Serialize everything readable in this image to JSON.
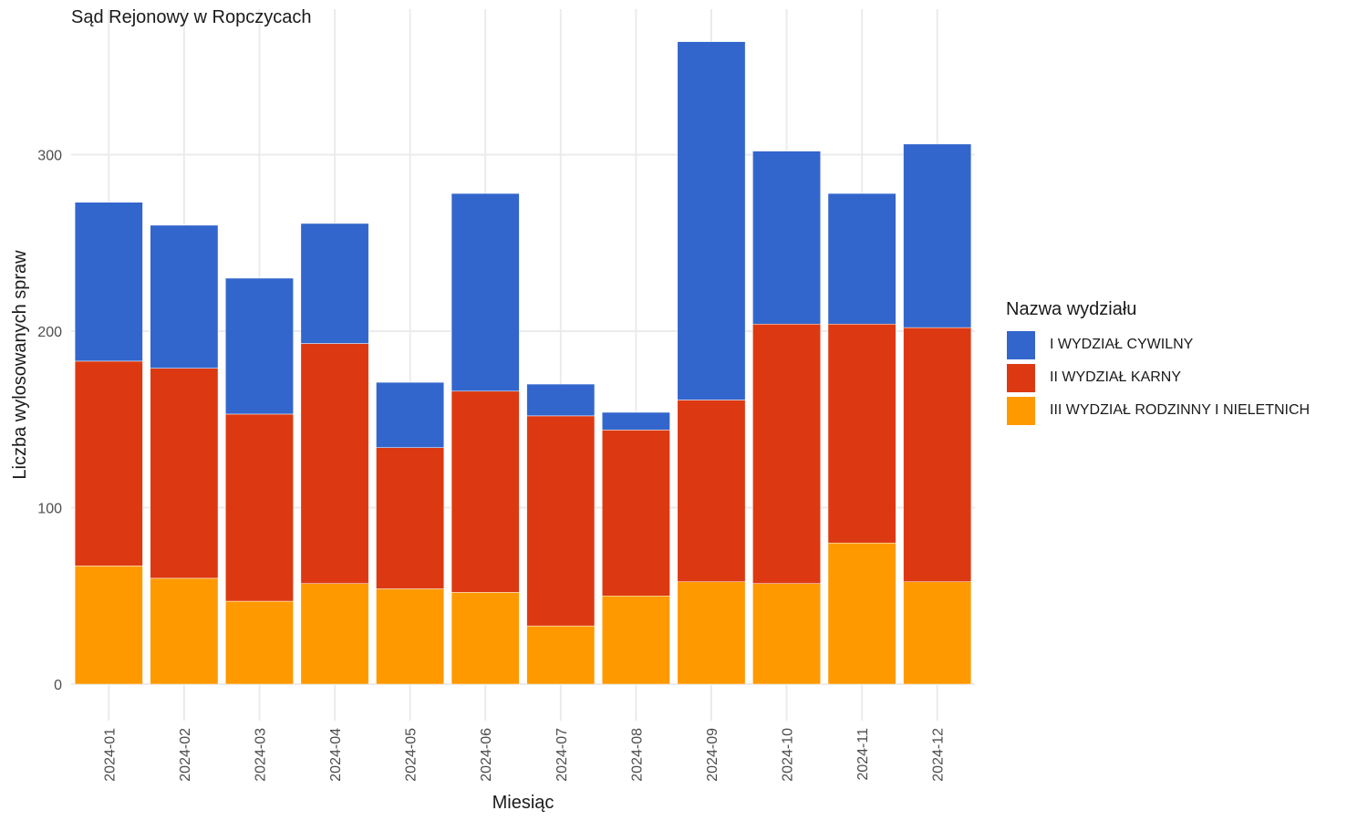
{
  "chart_data": {
    "type": "bar",
    "stacked": true,
    "title": "Sąd Rejonowy w Ropczycach",
    "xlabel": "Miesiąc",
    "ylabel": "Liczba wylosowanych spraw",
    "ylim": [
      0,
      380
    ],
    "yticks": [
      0,
      100,
      200,
      300
    ],
    "grid": true,
    "legend_position": "right",
    "legend_title": "Nazwa wydziału",
    "categories": [
      "2024-01",
      "2024-02",
      "2024-03",
      "2024-04",
      "2024-05",
      "2024-06",
      "2024-07",
      "2024-08",
      "2024-09",
      "2024-10",
      "2024-11",
      "2024-12"
    ],
    "series": [
      {
        "name": "III WYDZIAŁ RODZINNY I NIELETNICH",
        "color": "#ff9900",
        "values": [
          67,
          60,
          47,
          57,
          54,
          52,
          33,
          50,
          58,
          57,
          80,
          58
        ]
      },
      {
        "name": "II WYDZIAŁ KARNY",
        "color": "#dc3912",
        "values": [
          116,
          119,
          106,
          136,
          80,
          114,
          119,
          94,
          103,
          147,
          124,
          144
        ]
      },
      {
        "name": "I WYDZIAŁ CYWILNY",
        "color": "#3366cc",
        "values": [
          90,
          81,
          77,
          68,
          37,
          112,
          18,
          10,
          203,
          98,
          74,
          104
        ]
      }
    ],
    "legend_order": [
      "I WYDZIAŁ CYWILNY",
      "II WYDZIAŁ KARNY",
      "III WYDZIAŁ RODZINNY I NIELETNICH"
    ]
  }
}
